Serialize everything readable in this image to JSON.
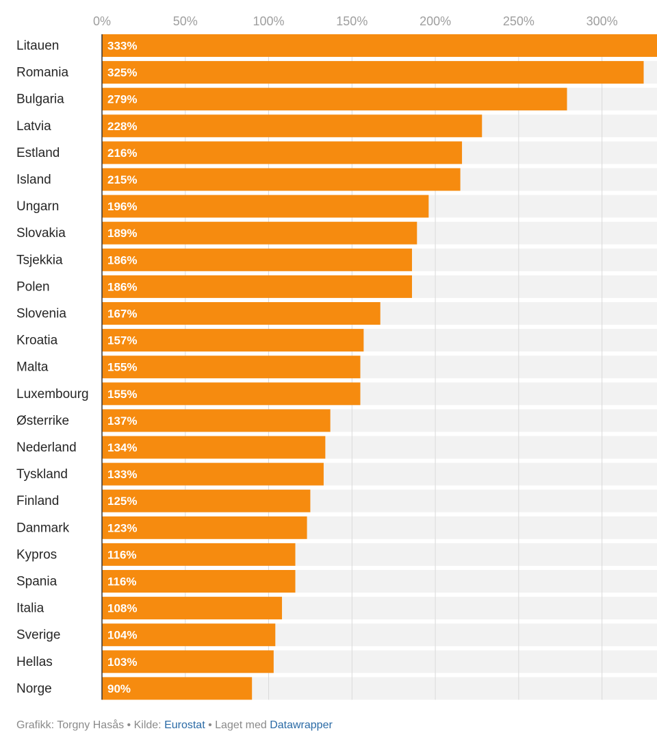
{
  "chart_data": {
    "type": "bar",
    "orientation": "horizontal",
    "x_ticks": [
      0,
      50,
      100,
      150,
      200,
      250,
      300
    ],
    "x_tick_labels": [
      "0%",
      "50%",
      "100%",
      "150%",
      "200%",
      "250%",
      "300%"
    ],
    "xlim": [
      0,
      333
    ],
    "categories": [
      "Litauen",
      "Romania",
      "Bulgaria",
      "Latvia",
      "Estland",
      "Island",
      "Ungarn",
      "Slovakia",
      "Tsjekkia",
      "Polen",
      "Slovenia",
      "Kroatia",
      "Malta",
      "Luxembourg",
      "Østerrike",
      "Nederland",
      "Tyskland",
      "Finland",
      "Danmark",
      "Kypros",
      "Spania",
      "Italia",
      "Sverige",
      "Hellas",
      "Norge"
    ],
    "values": [
      333,
      325,
      279,
      228,
      216,
      215,
      196,
      189,
      186,
      186,
      167,
      157,
      155,
      155,
      137,
      134,
      133,
      125,
      123,
      116,
      116,
      108,
      104,
      103,
      90
    ],
    "value_labels": [
      "333%",
      "325%",
      "279%",
      "228%",
      "216%",
      "215%",
      "196%",
      "189%",
      "186%",
      "186%",
      "167%",
      "157%",
      "155%",
      "155%",
      "137%",
      "134%",
      "133%",
      "125%",
      "123%",
      "116%",
      "116%",
      "108%",
      "104%",
      "103%",
      "90%"
    ],
    "colors": {
      "bar": "#f68b0f",
      "track": "#f2f2f2",
      "gridline": "#d9d9d9",
      "axis": "#333333"
    },
    "grid": true
  },
  "footer": {
    "credit": "Grafikk: Torgny Hasås • Kilde: ",
    "source_link": "Eurostat",
    "made_with": " • Laget med ",
    "tool_link": "Datawrapper"
  }
}
